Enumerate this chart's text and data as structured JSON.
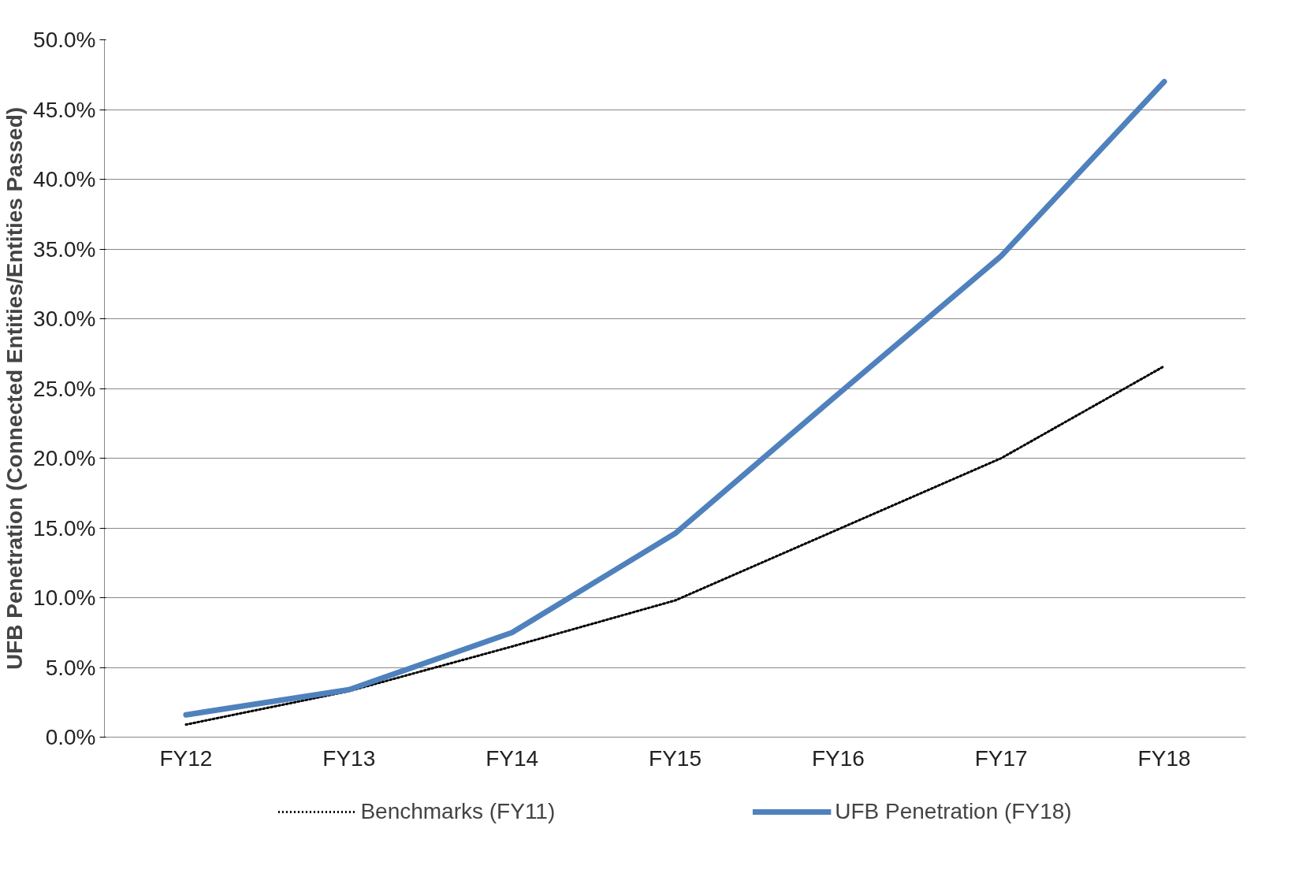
{
  "chart_data": {
    "type": "line",
    "ylabel": "UFB Penetration (Connected Entities/Entities Passed)",
    "categories": [
      "FY12",
      "FY13",
      "FY14",
      "FY15",
      "FY16",
      "FY17",
      "FY18"
    ],
    "series": [
      {
        "name": "Benchmarks (FY11)",
        "color": "#000000",
        "line_style": "dotted",
        "values": [
          0.9,
          3.3,
          6.5,
          9.8,
          14.9,
          20.0,
          26.6
        ]
      },
      {
        "name": "UFB Penetration (FY18)",
        "color": "#4f81bd",
        "line_style": "solid",
        "values": [
          1.6,
          3.4,
          7.5,
          14.6,
          24.6,
          34.5,
          47.0
        ]
      }
    ],
    "ylim": [
      0,
      50
    ],
    "yticks": [
      {
        "value": 0,
        "label": "0.0%"
      },
      {
        "value": 5,
        "label": "5.0%"
      },
      {
        "value": 10,
        "label": "10.0%"
      },
      {
        "value": 15,
        "label": "15.0%"
      },
      {
        "value": 20,
        "label": "20.0%"
      },
      {
        "value": 25,
        "label": "25.0%"
      },
      {
        "value": 30,
        "label": "30.0%"
      },
      {
        "value": 35,
        "label": "35.0%"
      },
      {
        "value": 40,
        "label": "40.0%"
      },
      {
        "value": 45,
        "label": "45.0%"
      },
      {
        "value": 50,
        "label": "50.0%"
      }
    ],
    "grid": "y",
    "legend": "bottom",
    "marker": "none"
  }
}
